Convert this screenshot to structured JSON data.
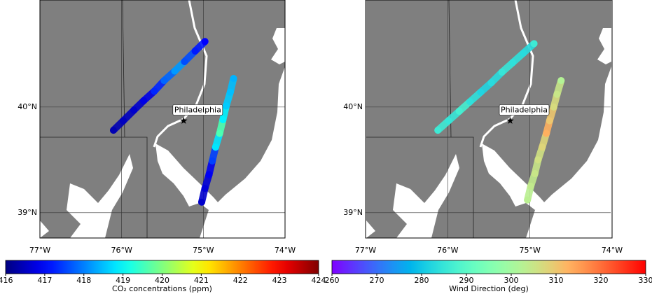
{
  "panels": [
    {
      "xticks": [
        {
          "value": -77,
          "label": "77°W"
        },
        {
          "value": -76,
          "label": "76°W"
        },
        {
          "value": -75,
          "label": "75°W"
        },
        {
          "value": -74,
          "label": "74°W"
        }
      ],
      "yticks": [
        {
          "value": 40,
          "label": "40°N"
        },
        {
          "value": 39,
          "label": "39°N"
        }
      ],
      "city": {
        "label": "Philadelphia",
        "lon": -75.24,
        "lat": 39.87
      },
      "colorbar": {
        "label": "CO₂ concentrations (ppm)",
        "colormap": "jet",
        "clim": [
          416,
          424
        ],
        "ticks": [
          416,
          417,
          418,
          419,
          420,
          421,
          422,
          423,
          424
        ]
      },
      "tracks": [
        {
          "points": [
            [
              -76.1,
              39.78,
              416.4
            ],
            [
              -75.98,
              39.87,
              416.5
            ],
            [
              -75.85,
              39.97,
              416.6
            ],
            [
              -75.73,
              40.06,
              416.8
            ],
            [
              -75.6,
              40.15,
              417.3
            ],
            [
              -75.48,
              40.25,
              417.8
            ],
            [
              -75.35,
              40.34,
              418.2
            ],
            [
              -75.23,
              40.43,
              417.6
            ],
            [
              -75.1,
              40.53,
              417.2
            ],
            [
              -74.98,
              40.62,
              417.0
            ]
          ]
        },
        {
          "points": [
            [
              -75.02,
              39.1,
              416.6
            ],
            [
              -74.98,
              39.23,
              416.7
            ],
            [
              -74.93,
              39.36,
              416.9
            ],
            [
              -74.89,
              39.49,
              417.5
            ],
            [
              -74.85,
              39.62,
              418.8
            ],
            [
              -74.8,
              39.75,
              419.6
            ],
            [
              -74.76,
              39.88,
              418.9
            ],
            [
              -74.72,
              40.01,
              418.6
            ],
            [
              -74.67,
              40.14,
              418.5
            ],
            [
              -74.63,
              40.27,
              418.4
            ]
          ]
        }
      ]
    },
    {
      "xticks": [
        {
          "value": -77,
          "label": "77°W"
        },
        {
          "value": -76,
          "label": "76°W"
        },
        {
          "value": -75,
          "label": "75°W"
        },
        {
          "value": -74,
          "label": "74°W"
        }
      ],
      "yticks": [
        {
          "value": 40,
          "label": "40°N"
        },
        {
          "value": 39,
          "label": "39°N"
        }
      ],
      "city": {
        "label": "Philadelphia",
        "lon": -75.24,
        "lat": 39.87
      },
      "colorbar": {
        "label": "Wind Direction (deg)",
        "colormap": "rainbow",
        "clim": [
          260,
          330
        ],
        "ticks": [
          260,
          270,
          280,
          290,
          300,
          310,
          320,
          330
        ]
      },
      "tracks": [
        {
          "points": [
            [
              -76.12,
              39.78,
              286
            ],
            [
              -75.99,
              39.87,
              285
            ],
            [
              -75.86,
              39.96,
              287
            ],
            [
              -75.73,
              40.05,
              284
            ],
            [
              -75.6,
              40.14,
              282
            ],
            [
              -75.47,
              40.23,
              283
            ],
            [
              -75.34,
              40.33,
              285
            ],
            [
              -75.21,
              40.42,
              284
            ],
            [
              -75.08,
              40.51,
              283
            ],
            [
              -74.95,
              40.6,
              286
            ]
          ]
        },
        {
          "points": [
            [
              -75.03,
              39.12,
              303
            ],
            [
              -74.99,
              39.25,
              304
            ],
            [
              -74.94,
              39.37,
              305
            ],
            [
              -74.9,
              39.5,
              306
            ],
            [
              -74.85,
              39.62,
              308
            ],
            [
              -74.8,
              39.75,
              313
            ],
            [
              -74.76,
              39.87,
              310
            ],
            [
              -74.71,
              40.0,
              307
            ],
            [
              -74.67,
              40.12,
              305
            ],
            [
              -74.62,
              40.25,
              302
            ]
          ]
        }
      ]
    }
  ]
}
